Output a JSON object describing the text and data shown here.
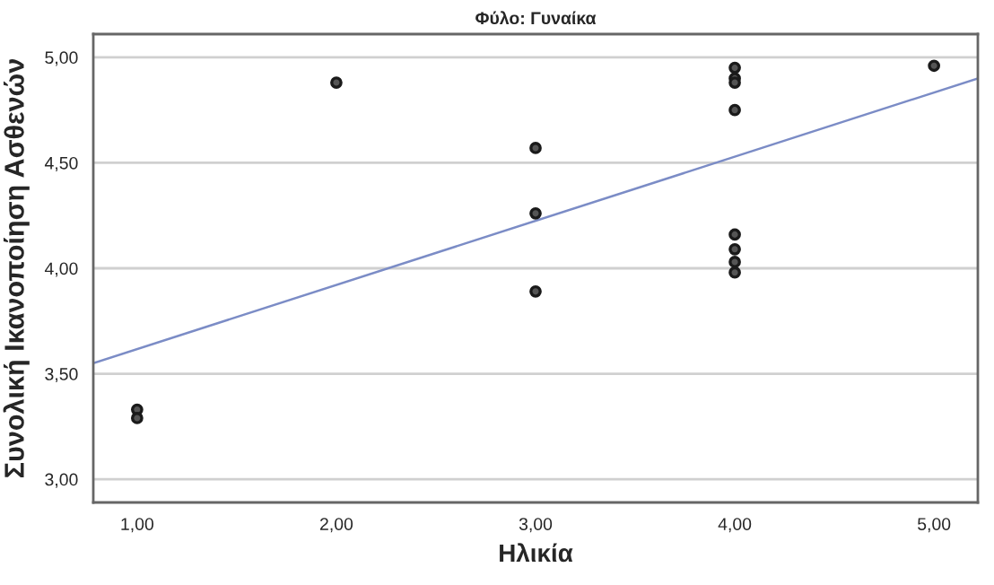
{
  "chart_data": {
    "type": "scatter",
    "title": "Φύλο: Γυναίκα",
    "xlabel": "Ηλικία",
    "ylabel": "Συνολική Ικανοποίηση Ασθενών",
    "series": [
      {
        "color": "#1a1a1a",
        "marker": "circle",
        "x": [
          1,
          1,
          2,
          3,
          3,
          3,
          4,
          4,
          4,
          4,
          4,
          4,
          4,
          4,
          5
        ],
        "values": [
          3.33,
          3.29,
          4.88,
          4.57,
          4.26,
          3.89,
          4.95,
          4.9,
          4.88,
          4.75,
          4.16,
          4.09,
          4.03,
          3.98,
          4.96
        ]
      },
      {
        "type": "line",
        "marker": "none",
        "color": "#7b8cc6",
        "x": [
          0.78,
          5.22
        ],
        "values": [
          3.55,
          4.9
        ]
      }
    ],
    "xlim": [
      0.78,
      5.22
    ],
    "ylim": [
      2.89,
      5.11
    ],
    "xticks": [
      {
        "value": 1,
        "label": "1,00"
      },
      {
        "value": 2,
        "label": "2,00"
      },
      {
        "value": 3,
        "label": "3,00"
      },
      {
        "value": 4,
        "label": "4,00"
      },
      {
        "value": 5,
        "label": "5,00"
      }
    ],
    "yticks": [
      {
        "value": 3,
        "label": "3,00"
      },
      {
        "value": 3.5,
        "label": "3,50"
      },
      {
        "value": 4,
        "label": "4,00"
      },
      {
        "value": 4.5,
        "label": "4,50"
      },
      {
        "value": 5,
        "label": "5,00"
      }
    ],
    "grid": "y",
    "line_style": "solid"
  }
}
